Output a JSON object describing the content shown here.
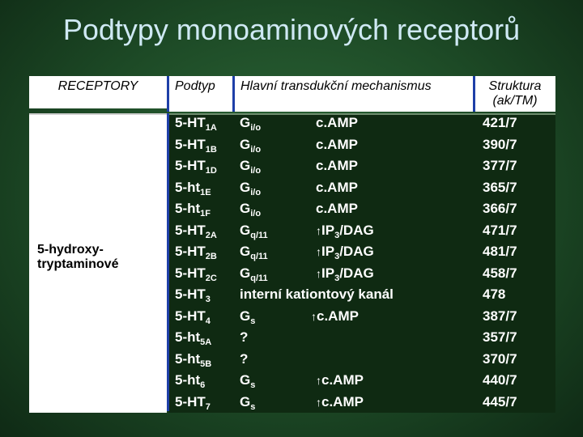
{
  "title": "Podtypy monoaminových receptorů",
  "headers": {
    "receptory": "RECEPTORY",
    "podtyp": "Podtyp",
    "mechanism": "Hlavní transdukční mechanismus",
    "struktura_1": "Struktura",
    "struktura_2": "(ak/TM)"
  },
  "receptor_group": {
    "line1": "5-hydroxy-",
    "line2": "tryptaminové"
  },
  "arrow_symbol": "↑",
  "rows": [
    {
      "sub_base": "5-HT",
      "sub_idx": "1A",
      "g_base": "G",
      "g_idx": "i/o",
      "second": "c.AMP",
      "second_arrow": false,
      "struct": "421/7"
    },
    {
      "sub_base": "5-HT",
      "sub_idx": "1B",
      "g_base": "G",
      "g_idx": "i/o",
      "second": "c.AMP",
      "second_arrow": false,
      "struct": "390/7"
    },
    {
      "sub_base": "5-HT",
      "sub_idx": "1D",
      "g_base": "G",
      "g_idx": "i/o",
      "second": "c.AMP",
      "second_arrow": false,
      "struct": "377/7"
    },
    {
      "sub_base": "5-ht",
      "sub_idx": "1E",
      "g_base": "G",
      "g_idx": "i/o",
      "second": "c.AMP",
      "second_arrow": false,
      "struct": "365/7"
    },
    {
      "sub_base": "5-ht",
      "sub_idx": "1F",
      "g_base": "G",
      "g_idx": "i/o",
      "second": "c.AMP",
      "second_arrow": false,
      "struct": "366/7"
    },
    {
      "sub_base": "5-HT",
      "sub_idx": "2A",
      "g_base": "G",
      "g_idx": "q/11",
      "second": "IP3/DAG",
      "second_arrow": true,
      "struct": "471/7"
    },
    {
      "sub_base": "5-HT",
      "sub_idx": "2B",
      "g_base": "G",
      "g_idx": "q/11",
      "second": "IP3/DAG",
      "second_arrow": true,
      "struct": "481/7"
    },
    {
      "sub_base": "5-HT",
      "sub_idx": "2C",
      "g_base": "G",
      "g_idx": "q/11",
      "second": "IP3/DAG",
      "second_arrow": true,
      "struct": "458/7"
    },
    {
      "sub_base": "5-HT",
      "sub_idx": "3",
      "g_base": "interní kationtový kanál",
      "g_idx": "",
      "second": "",
      "second_arrow": false,
      "struct": "478"
    },
    {
      "sub_base": "5-HT",
      "sub_idx": "4",
      "g_base": "G",
      "g_idx": "s",
      "second": "c.AMP",
      "second_arrow": true,
      "struct": "387/7"
    },
    {
      "sub_base": "5-ht",
      "sub_idx": "5A",
      "g_base": "?",
      "g_idx": "",
      "second": "",
      "second_arrow": false,
      "struct": "357/7"
    },
    {
      "sub_base": "5-ht",
      "sub_idx": "5B",
      "g_base": "?",
      "g_idx": "",
      "second": "",
      "second_arrow": false,
      "struct": "370/7"
    },
    {
      "sub_base": "5-ht",
      "sub_idx": "6",
      "g_base": "G",
      "g_idx": "s",
      "second": "c.AMP",
      "second_arrow": true,
      "struct": "440/7"
    },
    {
      "sub_base": "5-HT",
      "sub_idx": "7",
      "g_base": "G",
      "g_idx": "s",
      "second": "c.AMP",
      "second_arrow": true,
      "struct": "445/7"
    }
  ]
}
